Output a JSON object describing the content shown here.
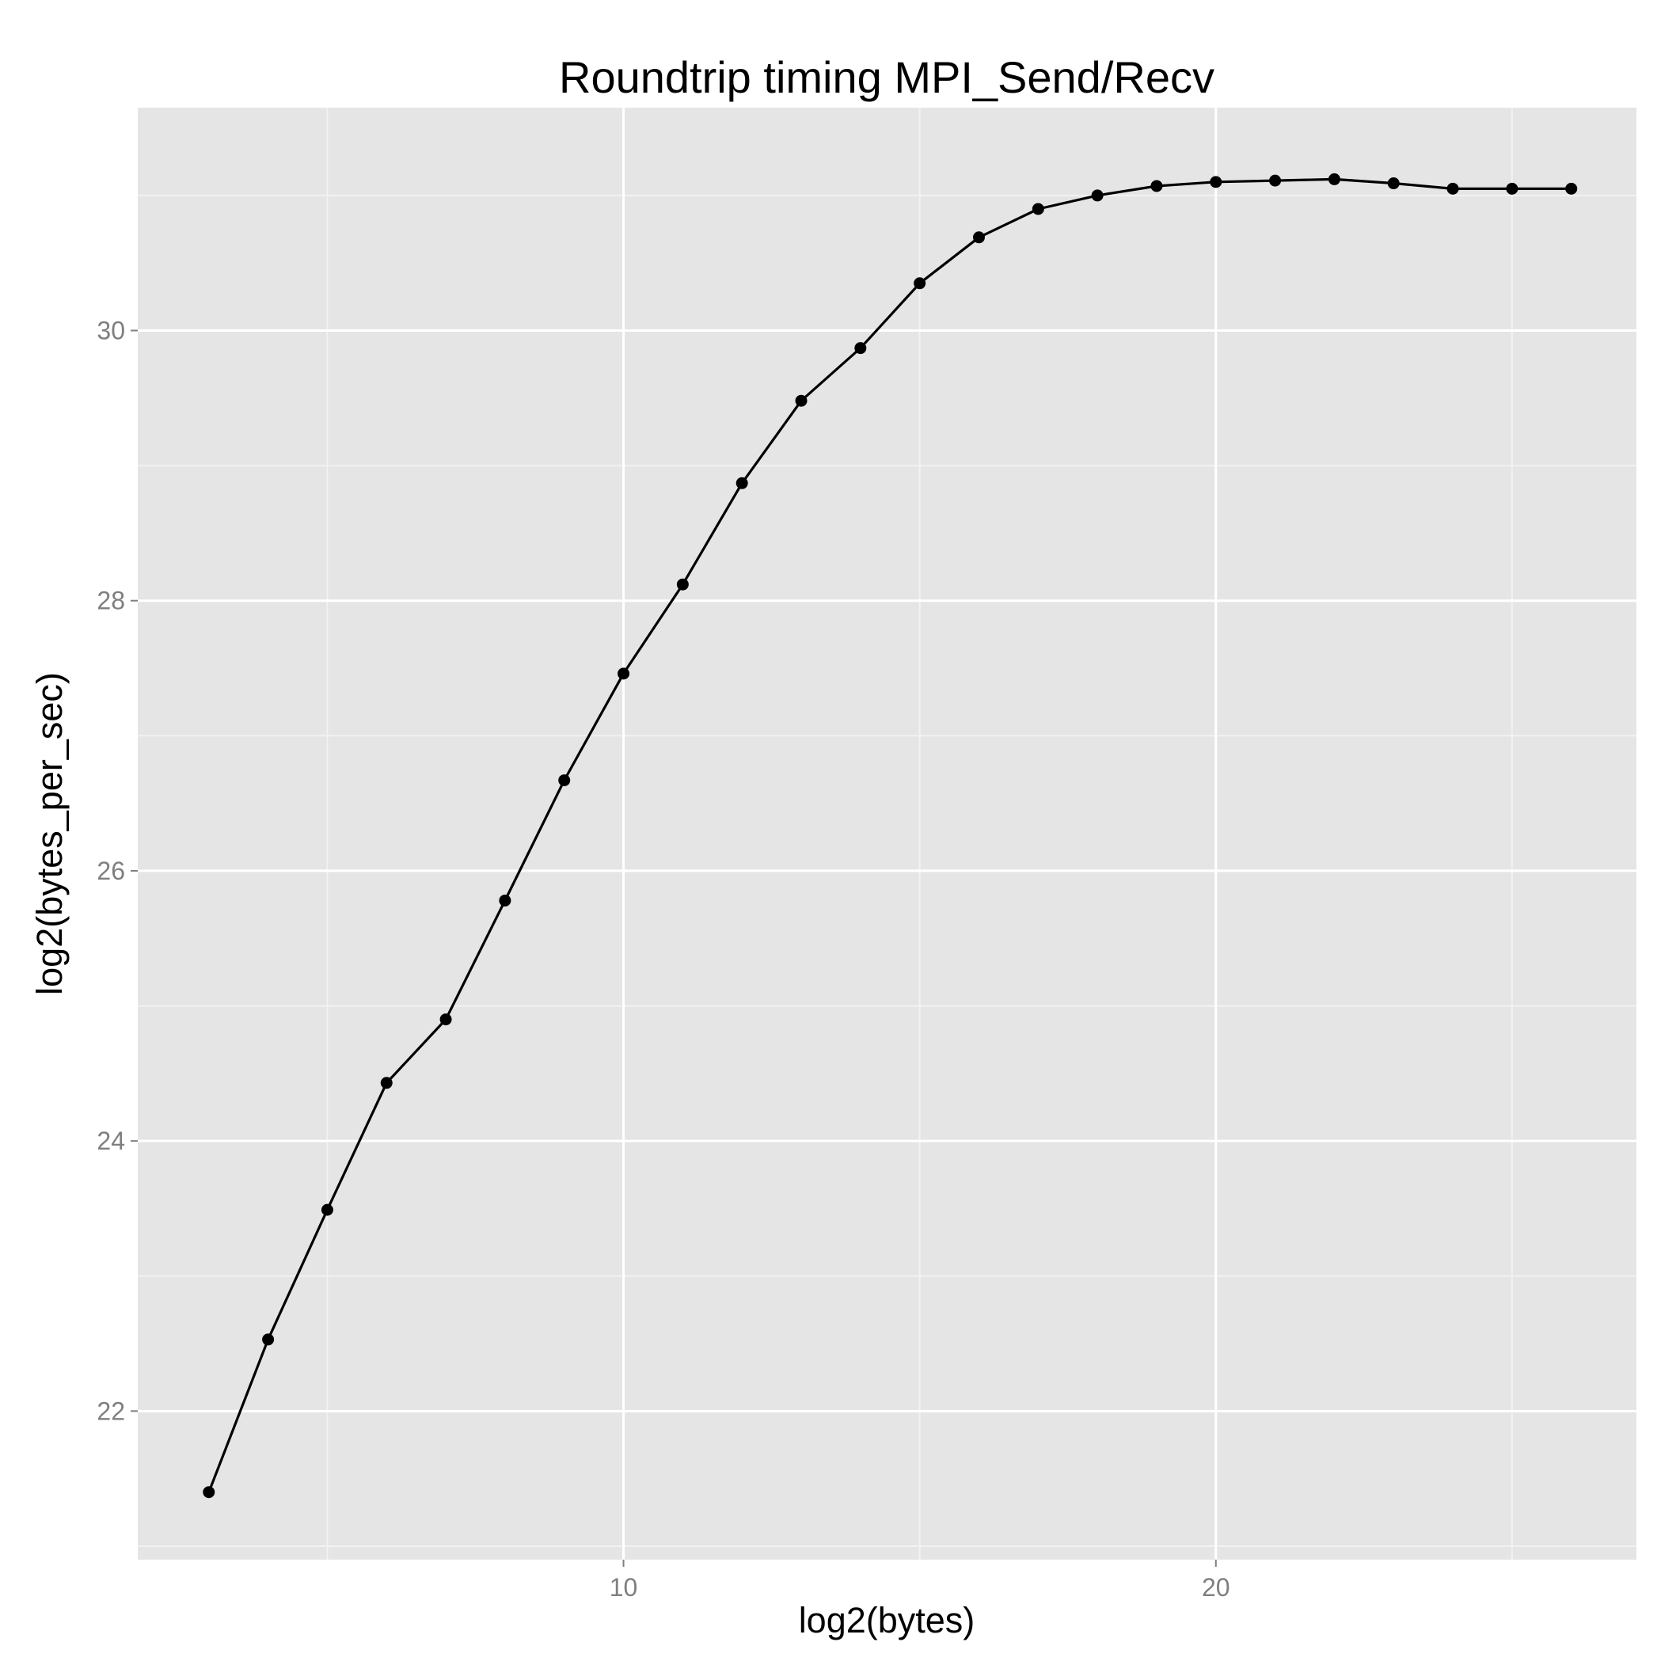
{
  "chart_data": {
    "type": "line",
    "title": "Roundtrip timing MPI_Send/Recv",
    "xlabel": "log2(bytes)",
    "ylabel": "log2(bytes_per_sec)",
    "xlim": [
      1.8,
      27.1
    ],
    "ylim": [
      20.9,
      31.65
    ],
    "x_ticks": [
      10,
      20
    ],
    "x_tick_labels": [
      "10",
      "20"
    ],
    "y_ticks": [
      22,
      24,
      26,
      28,
      30
    ],
    "y_tick_labels": [
      "22",
      "24",
      "26",
      "28",
      "30"
    ],
    "grid": true,
    "legend": "none",
    "series": [
      {
        "x": [
          3,
          4,
          5,
          6,
          7,
          8,
          9,
          10,
          11,
          12,
          13,
          14,
          15,
          16,
          17,
          18,
          19,
          20,
          21,
          22,
          23,
          24,
          25,
          26
        ],
        "y": [
          21.4,
          22.53,
          23.49,
          24.43,
          24.9,
          25.78,
          26.67,
          27.46,
          28.12,
          28.87,
          29.48,
          29.87,
          30.35,
          30.69,
          30.9,
          31.0,
          31.07,
          31.1,
          31.11,
          31.12,
          31.09,
          31.05,
          31.05,
          31.05
        ]
      }
    ],
    "colors": {
      "panel_background": "#e5e5e5",
      "major_grid": "#ffffff",
      "minor_grid": "#f2f2f2",
      "line": "#000000",
      "point": "#000000",
      "tick_label": "#7f7f7f"
    }
  }
}
